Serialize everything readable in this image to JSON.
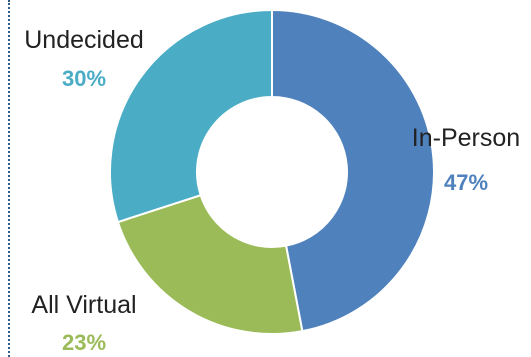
{
  "chart_data": {
    "type": "pie",
    "subtype": "donut",
    "slices": [
      {
        "label": "In-Person",
        "value": 47,
        "display": "47%",
        "color": "#4f81bd"
      },
      {
        "label": "All Virtual",
        "value": 23,
        "display": "23%",
        "color": "#9bbb59"
      },
      {
        "label": "Undecided",
        "value": 30,
        "display": "30%",
        "color": "#4bacc6"
      }
    ],
    "start_angle": "top",
    "direction": "clockwise",
    "legend": "none",
    "data_labels": "outside"
  }
}
